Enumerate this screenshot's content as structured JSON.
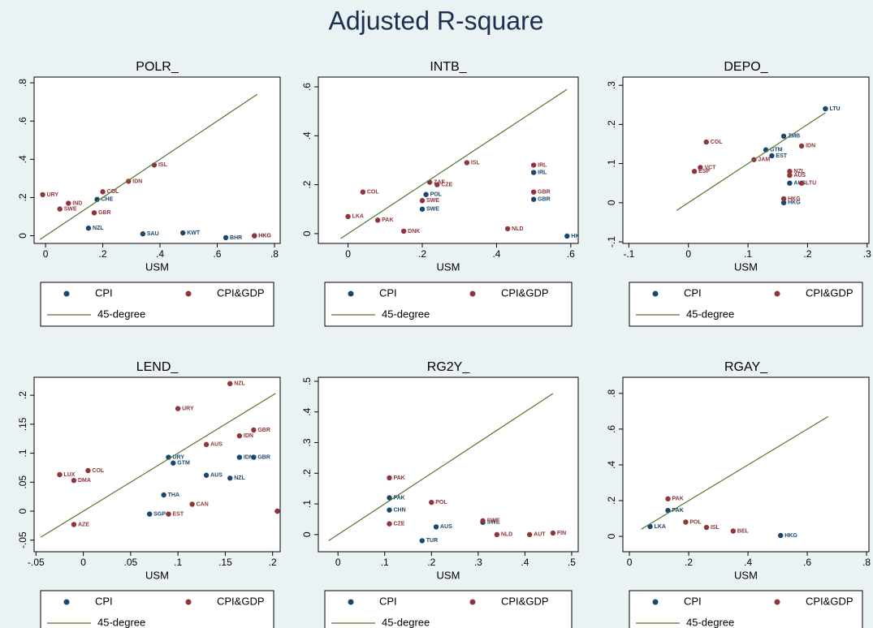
{
  "title": "Adjusted R-square",
  "chart_data": [
    {
      "type": "scatter",
      "title": "POLR_",
      "x_label": "USM",
      "xlim": [
        -0.04,
        0.82
      ],
      "ylim": [
        -0.04,
        0.83
      ],
      "xticks": [
        0,
        {
          "value": 0.2,
          "label": ".2"
        },
        {
          "value": 0.4,
          "label": ".4"
        },
        {
          "value": 0.6,
          "label": ".6"
        },
        {
          "value": 0.8,
          "label": ".8"
        }
      ],
      "yticks": [
        0,
        {
          "value": 0.2,
          "label": ".2"
        },
        {
          "value": 0.4,
          "label": ".4"
        },
        {
          "value": 0.6,
          "label": ".6"
        },
        {
          "value": 0.8,
          "label": ".8"
        }
      ],
      "series": [
        {
          "name": "CPI",
          "color": "#1a476f",
          "x": [
            0.34,
            0.48,
            0.63,
            0.73,
            0.18,
            0.15
          ],
          "values": [
            0.01,
            0.015,
            -0.01,
            0.0,
            0.19,
            0.04
          ],
          "labels": [
            "SAU",
            "KWT",
            "BHR",
            "HKG",
            "CHE",
            "NZL"
          ]
        },
        {
          "name": "CPI&GDP",
          "color": "#90353b",
          "x": [
            -0.01,
            0.08,
            0.05,
            0.29,
            0.38,
            0.2,
            0.73,
            0.17
          ],
          "values": [
            0.215,
            0.17,
            0.14,
            0.285,
            0.37,
            0.23,
            0.0,
            0.12
          ],
          "labels": [
            "URY",
            "IND",
            "SWE",
            "IDN",
            "ISL",
            "COL",
            "HKG",
            "GBR"
          ]
        },
        {
          "name": "45-degree",
          "type": "line",
          "color": "#55752f",
          "x": [
            -0.02,
            0.74
          ],
          "values": [
            -0.02,
            0.74
          ]
        }
      ]
    },
    {
      "type": "scatter",
      "title": "INTB_",
      "x_label": "USM",
      "xlim": [
        -0.08,
        0.62
      ],
      "ylim": [
        -0.04,
        0.64
      ],
      "xticks": [
        0,
        {
          "value": 0.2,
          "label": ".2"
        },
        {
          "value": 0.4,
          "label": ".4"
        },
        {
          "value": 0.6,
          "label": ".6"
        }
      ],
      "yticks": [
        0,
        {
          "value": 0.2,
          "label": ".2"
        },
        {
          "value": 0.4,
          "label": ".4"
        },
        {
          "value": 0.6,
          "label": ".6"
        }
      ],
      "series": [
        {
          "name": "CPI",
          "color": "#1a476f",
          "x": [
            0.5,
            0.5,
            0.2,
            0.21,
            0.59
          ],
          "values": [
            0.25,
            0.14,
            0.1,
            0.16,
            -0.01
          ],
          "labels": [
            "IRL",
            "GBR",
            "SWE",
            "POL",
            "HKG"
          ]
        },
        {
          "name": "CPI&GDP",
          "color": "#90353b",
          "x": [
            0.5,
            0.5,
            0.32,
            0.04,
            0.22,
            0.24,
            0.2,
            0.43,
            0.0,
            0.08,
            0.15
          ],
          "values": [
            0.28,
            0.17,
            0.29,
            0.17,
            0.21,
            0.2,
            0.135,
            0.02,
            0.07,
            0.055,
            0.01
          ],
          "labels": [
            "IRL",
            "GBR",
            "ISL",
            "COL",
            "ZAF",
            "CZE",
            "SWE",
            "NLD",
            "LKA",
            "PAK",
            "DNK"
          ]
        },
        {
          "name": "45-degree",
          "type": "line",
          "color": "#55752f",
          "x": [
            -0.02,
            0.59
          ],
          "values": [
            -0.02,
            0.59
          ]
        }
      ]
    },
    {
      "type": "scatter",
      "title": "DEPO_",
      "x_label": "USM",
      "xlim": [
        -0.11,
        0.303
      ],
      "ylim": [
        -0.104,
        0.321
      ],
      "xticks": [
        {
          "value": -0.1,
          "label": "-.1"
        },
        0,
        {
          "value": 0.1,
          "label": ".1"
        },
        {
          "value": 0.2,
          "label": ".2"
        },
        {
          "value": 0.3,
          "label": ".3"
        }
      ],
      "yticks": [
        {
          "value": -0.1,
          "label": "-.1"
        },
        0,
        {
          "value": 0.1,
          "label": ".1"
        },
        {
          "value": 0.2,
          "label": ".2"
        },
        {
          "value": 0.3,
          "label": ".3"
        }
      ],
      "series": [
        {
          "name": "CPI",
          "color": "#1a476f",
          "x": [
            0.23,
            0.16,
            0.13,
            0.14,
            0.17,
            0.16
          ],
          "values": [
            0.24,
            0.17,
            0.135,
            0.12,
            0.05,
            0.0
          ],
          "labels": [
            "LTU",
            "ZMB",
            "GTM",
            "EST",
            "AUS",
            "HKG"
          ]
        },
        {
          "name": "CPI&GDP",
          "color": "#90353b",
          "x": [
            0.03,
            0.19,
            0.17,
            0.17,
            0.19,
            0.16,
            0.11,
            0.02,
            0.01
          ],
          "values": [
            0.155,
            0.145,
            0.08,
            0.07,
            0.05,
            0.01,
            0.11,
            0.09,
            0.08
          ],
          "labels": [
            "COL",
            "IDN",
            "NZL",
            "AUS",
            "LTU",
            "HKG",
            "JAM",
            "VCT",
            "ESP"
          ]
        },
        {
          "name": "45-degree",
          "type": "line",
          "color": "#55752f",
          "x": [
            -0.02,
            0.23
          ],
          "values": [
            -0.02,
            0.23
          ]
        }
      ]
    },
    {
      "type": "scatter",
      "title": "LEND_",
      "x_label": "USM",
      "xlim": [
        -0.052,
        0.208
      ],
      "ylim": [
        -0.07,
        0.231
      ],
      "xticks": [
        {
          "value": -0.05,
          "label": "-.05"
        },
        0,
        {
          "value": 0.05,
          "label": ".05"
        },
        {
          "value": 0.1,
          "label": ".1"
        },
        {
          "value": 0.15,
          "label": ".15"
        },
        {
          "value": 0.2,
          "label": ".2"
        }
      ],
      "yticks": [
        {
          "value": -0.05,
          "label": "-.05"
        },
        0,
        {
          "value": 0.05,
          "label": ".05"
        },
        {
          "value": 0.1,
          "label": ".1"
        },
        {
          "value": 0.15,
          "label": ".15"
        },
        {
          "value": 0.2,
          "label": ".2"
        }
      ],
      "series": [
        {
          "name": "CPI",
          "color": "#1a476f",
          "x": [
            0.09,
            0.095,
            0.165,
            0.18,
            0.13,
            0.155,
            0.085,
            0.07,
            0.205
          ],
          "values": [
            0.093,
            0.083,
            0.093,
            0.093,
            0.062,
            0.057,
            0.028,
            -0.005,
            0.0
          ],
          "labels": [
            "URY",
            "GTM",
            "IDN",
            "GBR",
            "AUS",
            "NZL",
            "THA",
            "SGP",
            "HKG"
          ]
        },
        {
          "name": "CPI&GDP",
          "color": "#90353b",
          "x": [
            0.155,
            0.1,
            0.18,
            0.165,
            0.13,
            0.005,
            -0.025,
            -0.01,
            0.115,
            0.09,
            -0.01,
            0.205
          ],
          "values": [
            0.22,
            0.177,
            0.14,
            0.13,
            0.115,
            0.07,
            0.063,
            0.053,
            0.012,
            -0.005,
            -0.023,
            0.0
          ],
          "labels": [
            "NZL",
            "URY",
            "GBR",
            "IDN",
            "AUS",
            "COL",
            "LUX",
            "DMA",
            "CAN",
            "EST",
            "AZE",
            "HKG"
          ]
        },
        {
          "name": "45-degree",
          "type": "line",
          "color": "#55752f",
          "x": [
            -0.045,
            0.203
          ],
          "values": [
            -0.045,
            0.203
          ]
        }
      ]
    },
    {
      "type": "scatter",
      "title": "RG2Y_",
      "x_label": "USM",
      "xlim": [
        -0.042,
        0.514
      ],
      "ylim": [
        -0.056,
        0.513
      ],
      "xticks": [
        0,
        {
          "value": 0.1,
          "label": ".1"
        },
        {
          "value": 0.2,
          "label": ".2"
        },
        {
          "value": 0.3,
          "label": ".3"
        },
        {
          "value": 0.4,
          "label": ".4"
        },
        {
          "value": 0.5,
          "label": ".5"
        }
      ],
      "yticks": [
        0,
        {
          "value": 0.1,
          "label": ".1"
        },
        {
          "value": 0.2,
          "label": ".2"
        },
        {
          "value": 0.3,
          "label": ".3"
        },
        {
          "value": 0.4,
          "label": ".4"
        },
        {
          "value": 0.5,
          "label": ".5"
        }
      ],
      "series": [
        {
          "name": "CPI",
          "color": "#1a476f",
          "x": [
            0.11,
            0.11,
            0.18,
            0.31,
            0.21
          ],
          "values": [
            0.12,
            0.08,
            -0.02,
            0.04,
            0.025
          ],
          "labels": [
            "PAK",
            "CHN",
            "TUR",
            "SWE",
            "AUS"
          ]
        },
        {
          "name": "CPI&GDP",
          "color": "#90353b",
          "x": [
            0.11,
            0.2,
            0.31,
            0.41,
            0.46,
            0.34,
            0.11
          ],
          "values": [
            0.185,
            0.105,
            0.045,
            0.0,
            0.005,
            0.0,
            0.035
          ],
          "labels": [
            "PAK",
            "POL",
            "SWE",
            "AUT",
            "FIN",
            "NLD",
            "CZE"
          ]
        },
        {
          "name": "45-degree",
          "type": "line",
          "color": "#55752f",
          "x": [
            -0.02,
            0.46
          ],
          "values": [
            -0.02,
            0.46
          ]
        }
      ]
    },
    {
      "type": "scatter",
      "title": "RGAY_",
      "x_label": "USM",
      "xlim": [
        -0.022,
        0.808
      ],
      "ylim": [
        -0.086,
        0.89
      ],
      "xticks": [
        0,
        {
          "value": 0.2,
          "label": ".2"
        },
        {
          "value": 0.4,
          "label": ".4"
        },
        {
          "value": 0.6,
          "label": ".6"
        },
        {
          "value": 0.8,
          "label": ".8"
        }
      ],
      "yticks": [
        0,
        {
          "value": 0.2,
          "label": ".2"
        },
        {
          "value": 0.4,
          "label": ".4"
        },
        {
          "value": 0.6,
          "label": ".6"
        },
        {
          "value": 0.8,
          "label": ".8"
        }
      ],
      "series": [
        {
          "name": "CPI",
          "color": "#1a476f",
          "x": [
            0.13,
            0.07,
            0.51
          ],
          "values": [
            0.145,
            0.055,
            0.005
          ],
          "labels": [
            "PAK",
            "LKA",
            "HKG"
          ]
        },
        {
          "name": "CPI&GDP",
          "color": "#90353b",
          "x": [
            0.13,
            0.19,
            0.35,
            0.26
          ],
          "values": [
            0.21,
            0.08,
            0.03,
            0.05
          ],
          "labels": [
            "PAK",
            "POL",
            "BEL",
            "ISL"
          ]
        },
        {
          "name": "45-degree",
          "type": "line",
          "color": "#55752f",
          "x": [
            0.04,
            0.67
          ],
          "values": [
            0.04,
            0.67
          ]
        }
      ]
    }
  ]
}
